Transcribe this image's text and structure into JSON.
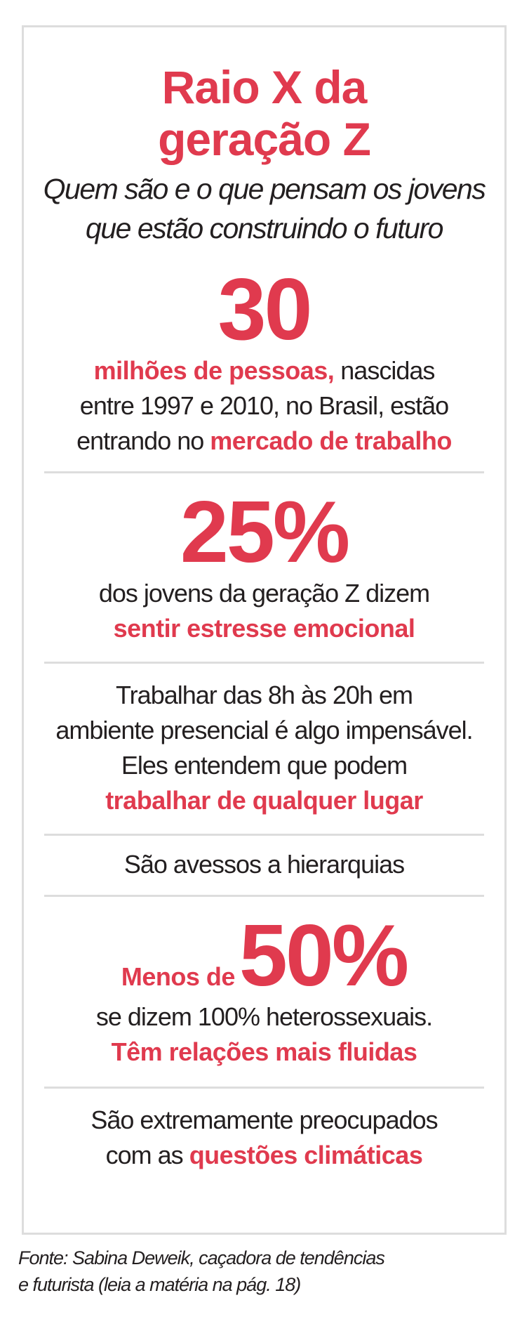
{
  "title": {
    "line1": "Raio X da",
    "line2": "geração Z"
  },
  "subtitle": {
    "line1": "Quem são e o que pensam os jovens",
    "line2": "que estão construindo o futuro"
  },
  "stat1": {
    "number": "30",
    "highlight1": "milhões de pessoas,",
    "text1": " nascidas",
    "text2": "entre 1997 e 2010, no Brasil, estão",
    "text3": "entrando no ",
    "highlight2": "mercado de trabalho"
  },
  "stat2": {
    "number": "25%",
    "text1": "dos jovens da geração Z dizem",
    "highlight1": "sentir estresse emocional"
  },
  "stat3": {
    "text1": "Trabalhar das 8h às 20h em",
    "text2": "ambiente presencial é algo impensável.",
    "text3": "Eles entendem que podem",
    "highlight1": "trabalhar de qualquer lugar"
  },
  "stat4": {
    "text1": "São avessos a hierarquias"
  },
  "stat5": {
    "label": "Menos de",
    "number": "50%",
    "text1": "se dizem 100% heterossexuais.",
    "highlight1": "Têm relações mais fluidas"
  },
  "stat6": {
    "text1": "São extremamente preocupados",
    "text2": "com as ",
    "highlight1": "questões climáticas"
  },
  "source": {
    "line1": "Fonte: Sabina Deweik, caçadora de tendências",
    "line2": "e futurista (leia a matéria na pág. 18)"
  },
  "colors": {
    "accent": "#e03a4e",
    "text": "#231f20",
    "border": "#dddddd"
  }
}
